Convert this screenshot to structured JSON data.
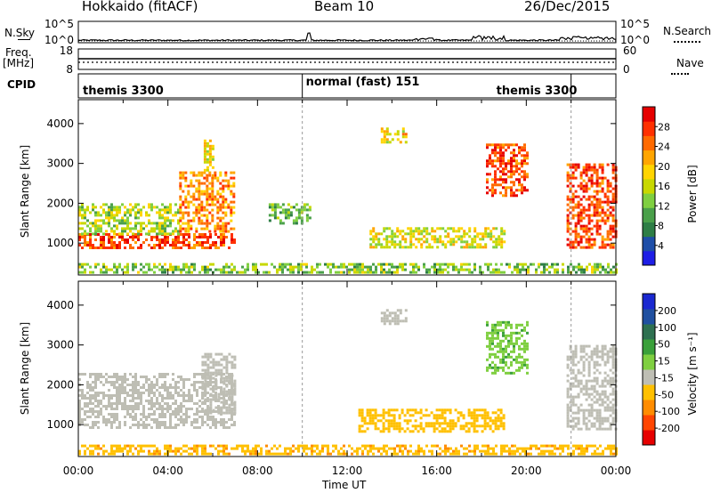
{
  "header": {
    "station": "Hokkaido (fitACF)",
    "beam": "Beam 10",
    "date": "26/Dec/2015"
  },
  "top_panels": {
    "nsky_label": "N.Sky",
    "nsearch_label": "N.Search",
    "noise_ticks_left": [
      "10^5",
      "10^0"
    ],
    "noise_ticks_right": [
      "10^5",
      "10^0"
    ],
    "freq_label": "Freq.",
    "freq_unit": "[MHz]",
    "freq_ticks": [
      "18",
      "8"
    ],
    "nave_label": "Nave",
    "nave_ticks": [
      "60",
      "0"
    ],
    "cpid_label": "CPID",
    "cpid_segments": [
      "themis 3300",
      "normal (fast) 151",
      "themis 3300"
    ]
  },
  "colorbars": {
    "power": {
      "label": "Power [dB]",
      "ticks": [
        "28",
        "24",
        "20",
        "16",
        "12",
        "8",
        "4"
      ],
      "colors": [
        "#1e1ee6",
        "#1e4ea8",
        "#2e7e46",
        "#4aa04a",
        "#7fcf40",
        "#c8d800",
        "#ffd400",
        "#ffa500",
        "#ff6a00",
        "#ff3000",
        "#e60000"
      ]
    },
    "velocity": {
      "label": "Velocity [m s⁻¹]",
      "ticks": [
        "200",
        "100",
        "50",
        "15",
        "-15",
        "-50",
        "-100",
        "-200"
      ],
      "colors": [
        "#e60000",
        "#ff4500",
        "#ff8c00",
        "#ffc000",
        "#bebeb4",
        "#7fcf40",
        "#3aa03a",
        "#2e7050",
        "#2050a0",
        "#1a28d0"
      ]
    }
  },
  "chart_data": {
    "type": "heatmap",
    "xlabel": "Time UT",
    "x_ticks": [
      "00:00",
      "04:00",
      "08:00",
      "12:00",
      "16:00",
      "20:00",
      "00:00"
    ],
    "xlim": [
      0,
      24
    ],
    "ylabel": "Slant Range [km]",
    "y_ticks": [
      1000,
      2000,
      3000,
      4000
    ],
    "ylim": [
      200,
      4600
    ],
    "panels": [
      {
        "name": "Power",
        "regions": [
          {
            "t": [
              0,
              7
            ],
            "range": [
              900,
              1250
            ],
            "value": 26
          },
          {
            "t": [
              0,
              4.5
            ],
            "range": [
              1250,
              2000
            ],
            "value": 14
          },
          {
            "t": [
              4.5,
              7
            ],
            "range": [
              1300,
              2800
            ],
            "value": 22
          },
          {
            "t": [
              5.6,
              6.0
            ],
            "range": [
              2700,
              3600
            ],
            "value": 16
          },
          {
            "t": [
              8.5,
              10.3
            ],
            "range": [
              1500,
              2000
            ],
            "value": 10
          },
          {
            "t": [
              13.5,
              14.6
            ],
            "range": [
              3500,
              3900
            ],
            "value": 18
          },
          {
            "t": [
              18.2,
              20.0
            ],
            "range": [
              2200,
              3500
            ],
            "value": 26
          },
          {
            "t": [
              21.8,
              24
            ],
            "range": [
              900,
              3000
            ],
            "value": 26
          },
          {
            "t": [
              13,
              19
            ],
            "range": [
              900,
              1400
            ],
            "value": 16
          },
          {
            "t": [
              0,
              24
            ],
            "range": [
              250,
              500
            ],
            "value": 12
          }
        ]
      },
      {
        "name": "Velocity",
        "regions": [
          {
            "t": [
              0,
              7
            ],
            "range": [
              900,
              2300
            ],
            "value": 0
          },
          {
            "t": [
              5.5,
              7
            ],
            "range": [
              1300,
              2800
            ],
            "value": 0
          },
          {
            "t": [
              13.5,
              14.6
            ],
            "range": [
              3500,
              3900
            ],
            "value": 0
          },
          {
            "t": [
              18.2,
              20.0
            ],
            "range": [
              2300,
              3600
            ],
            "value": 40
          },
          {
            "t": [
              21.8,
              24
            ],
            "range": [
              900,
              3000
            ],
            "value": 0
          },
          {
            "t": [
              12.5,
              19
            ],
            "range": [
              800,
              1400
            ],
            "value": -30
          },
          {
            "t": [
              0,
              24
            ],
            "range": [
              250,
              500
            ],
            "value": -40
          }
        ]
      }
    ],
    "mode_changes": [
      10.0,
      22.0
    ]
  }
}
